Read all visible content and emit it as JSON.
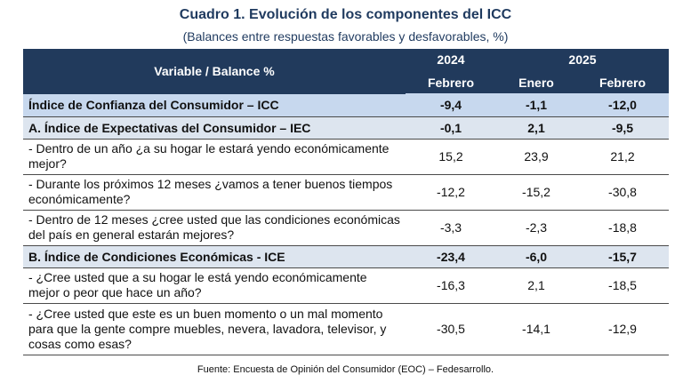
{
  "title": "Cuadro 1. Evolución de los componentes del ICC",
  "subtitle": "(Balances entre respuestas favorables y desfavorables, %)",
  "table": {
    "header": {
      "variable": "Variable / Balance %",
      "year_2024": "2024",
      "year_2025": "2025",
      "col_feb_2024": "Febrero",
      "col_ene_2025": "Enero",
      "col_feb_2025": "Febrero"
    },
    "rows": [
      {
        "label": "Índice de Confianza del Consumidor – ICC",
        "v1": "-9,4",
        "v2": "-1,1",
        "v3": "-12,0"
      },
      {
        "label": "A. Índice de Expectativas del Consumidor – IEC",
        "v1": "-0,1",
        "v2": "2,1",
        "v3": "-9,5"
      },
      {
        "label": " - Dentro de un año ¿a su hogar le estará yendo económicamente mejor?",
        "v1": "15,2",
        "v2": "23,9",
        "v3": "21,2"
      },
      {
        "label": " - Durante los próximos 12 meses ¿vamos a tener buenos tiempos económicamente?",
        "v1": "-12,2",
        "v2": "-15,2",
        "v3": "-30,8"
      },
      {
        "label": " - Dentro de 12 meses ¿cree usted que las condiciones económicas del país en general estarán mejores?",
        "v1": "-3,3",
        "v2": "-2,3",
        "v3": "-18,8"
      },
      {
        "label": "B. Índice de Condiciones Económicas - ICE",
        "v1": "-23,4",
        "v2": "-6,0",
        "v3": "-15,7"
      },
      {
        "label": " - ¿Cree usted que a su hogar le está yendo económicamente mejor o peor que hace un año?",
        "v1": "-16,3",
        "v2": "2,1",
        "v3": "-18,5"
      },
      {
        "label": " - ¿Cree usted que este es un buen momento o un mal momento para que la gente compre muebles, nevera, lavadora, televisor, y cosas como esas?",
        "v1": "-30,5",
        "v2": "-14,1",
        "v3": "-12,9"
      }
    ]
  },
  "source": "Fuente: Encuesta de Opinión del Consumidor (EOC) – Fedesarrollo."
}
